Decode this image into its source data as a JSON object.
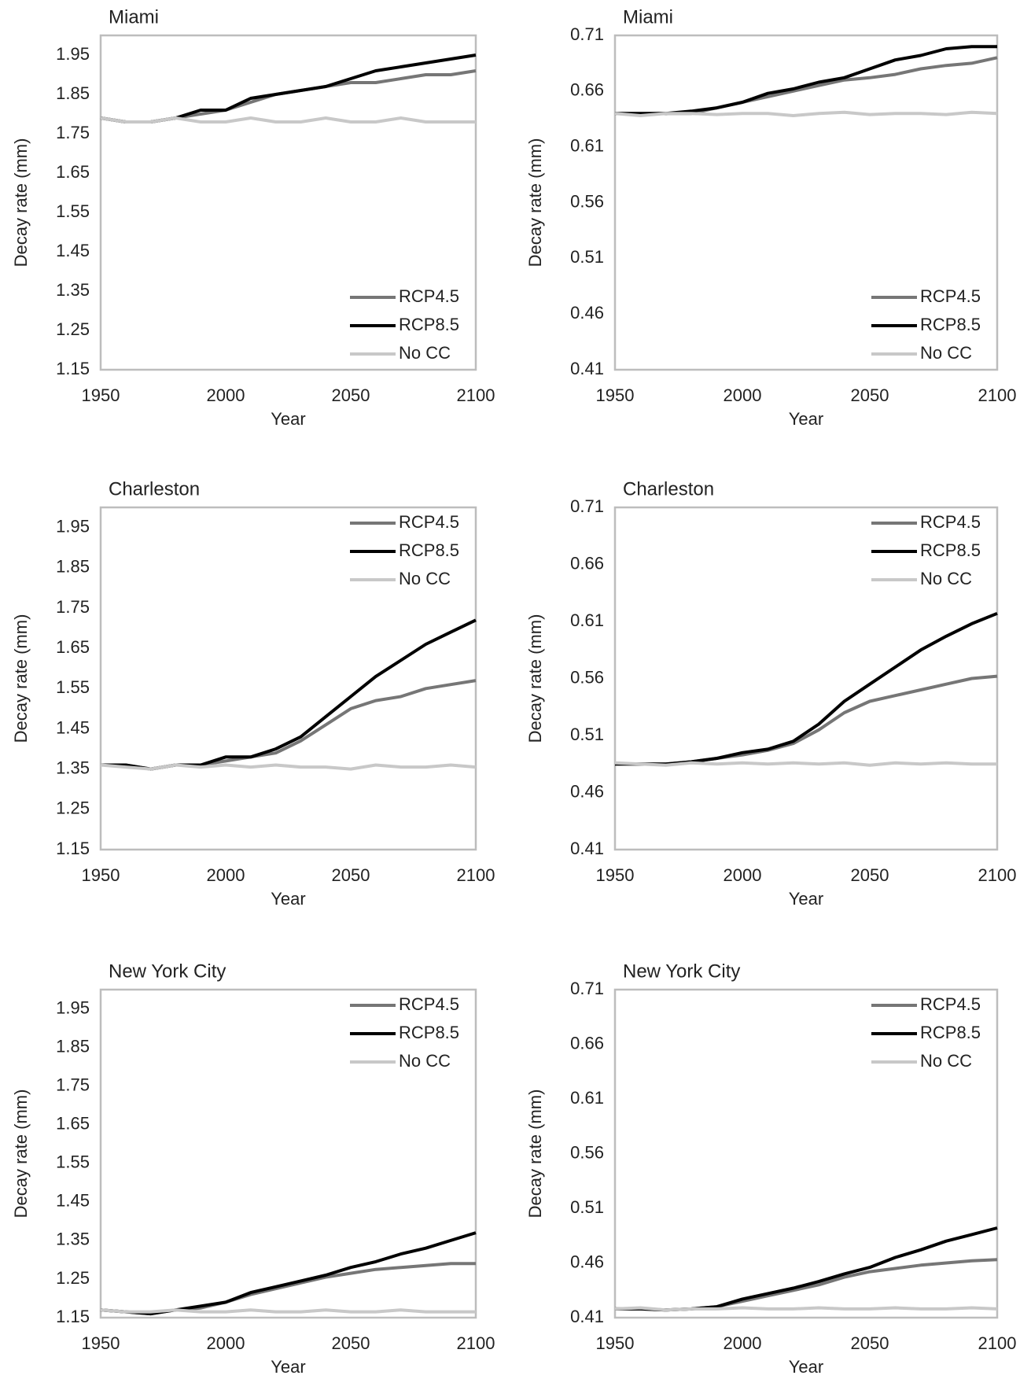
{
  "chart_data": [
    {
      "type": "line",
      "title": "Miami",
      "x_label": "Year",
      "y_label": "Decay rate (mm)",
      "x": [
        1950,
        1960,
        1970,
        1980,
        1990,
        2000,
        2010,
        2020,
        2030,
        2040,
        2050,
        2060,
        2070,
        2080,
        2090,
        2100
      ],
      "xlim": [
        1950,
        2100
      ],
      "xticks": [
        1950,
        2000,
        2050,
        2100
      ],
      "ylim": [
        1.15,
        2.0
      ],
      "yticks": [
        1.15,
        1.25,
        1.35,
        1.45,
        1.55,
        1.65,
        1.75,
        1.85,
        1.95
      ],
      "legend": "lower right",
      "series": [
        {
          "name": "RCP4.5",
          "color": "#767676",
          "values": [
            1.79,
            1.78,
            1.78,
            1.79,
            1.8,
            1.81,
            1.83,
            1.85,
            1.86,
            1.87,
            1.88,
            1.88,
            1.89,
            1.9,
            1.9,
            1.91
          ]
        },
        {
          "name": "RCP8.5",
          "color": "#000000",
          "values": [
            1.79,
            1.78,
            1.78,
            1.79,
            1.81,
            1.81,
            1.84,
            1.85,
            1.86,
            1.87,
            1.89,
            1.91,
            1.92,
            1.93,
            1.94,
            1.95
          ]
        },
        {
          "name": "No CC",
          "color": "#c8c8c8",
          "values": [
            1.79,
            1.78,
            1.78,
            1.79,
            1.78,
            1.78,
            1.79,
            1.78,
            1.78,
            1.79,
            1.78,
            1.78,
            1.79,
            1.78,
            1.78,
            1.78
          ]
        }
      ]
    },
    {
      "type": "line",
      "title": "Miami",
      "x_label": "Year",
      "y_label": "Decay rate (mm)",
      "x": [
        1950,
        1960,
        1970,
        1980,
        1990,
        2000,
        2010,
        2020,
        2030,
        2040,
        2050,
        2060,
        2070,
        2080,
        2090,
        2100
      ],
      "xlim": [
        1950,
        2100
      ],
      "xticks": [
        1950,
        2000,
        2050,
        2100
      ],
      "ylim": [
        0.41,
        0.71
      ],
      "yticks": [
        0.41,
        0.46,
        0.51,
        0.56,
        0.61,
        0.66,
        0.71
      ],
      "legend": "lower right",
      "series": [
        {
          "name": "RCP4.5",
          "color": "#767676",
          "values": [
            0.64,
            0.64,
            0.64,
            0.64,
            0.645,
            0.65,
            0.655,
            0.66,
            0.665,
            0.67,
            0.672,
            0.675,
            0.68,
            0.683,
            0.685,
            0.69
          ]
        },
        {
          "name": "RCP8.5",
          "color": "#000000",
          "values": [
            0.64,
            0.64,
            0.64,
            0.642,
            0.645,
            0.65,
            0.658,
            0.662,
            0.668,
            0.672,
            0.68,
            0.688,
            0.692,
            0.698,
            0.7,
            0.7
          ]
        },
        {
          "name": "No CC",
          "color": "#c8c8c8",
          "values": [
            0.64,
            0.638,
            0.64,
            0.64,
            0.639,
            0.64,
            0.64,
            0.638,
            0.64,
            0.641,
            0.639,
            0.64,
            0.64,
            0.639,
            0.641,
            0.64
          ]
        }
      ]
    },
    {
      "type": "line",
      "title": "Charleston",
      "x_label": "Year",
      "y_label": "Decay rate (mm)",
      "x": [
        1950,
        1960,
        1970,
        1980,
        1990,
        2000,
        2010,
        2020,
        2030,
        2040,
        2050,
        2060,
        2070,
        2080,
        2090,
        2100
      ],
      "xlim": [
        1950,
        2100
      ],
      "xticks": [
        1950,
        2000,
        2050,
        2100
      ],
      "ylim": [
        1.15,
        2.0
      ],
      "yticks": [
        1.15,
        1.25,
        1.35,
        1.45,
        1.55,
        1.65,
        1.75,
        1.85,
        1.95
      ],
      "legend": "upper right",
      "series": [
        {
          "name": "RCP4.5",
          "color": "#767676",
          "values": [
            1.36,
            1.36,
            1.35,
            1.36,
            1.36,
            1.37,
            1.38,
            1.39,
            1.42,
            1.46,
            1.5,
            1.52,
            1.53,
            1.55,
            1.56,
            1.57
          ]
        },
        {
          "name": "RCP8.5",
          "color": "#000000",
          "values": [
            1.36,
            1.36,
            1.35,
            1.36,
            1.36,
            1.38,
            1.38,
            1.4,
            1.43,
            1.48,
            1.53,
            1.58,
            1.62,
            1.66,
            1.69,
            1.72
          ]
        },
        {
          "name": "No CC",
          "color": "#c8c8c8",
          "values": [
            1.36,
            1.355,
            1.35,
            1.36,
            1.355,
            1.36,
            1.355,
            1.36,
            1.355,
            1.355,
            1.35,
            1.36,
            1.355,
            1.355,
            1.36,
            1.355
          ]
        }
      ]
    },
    {
      "type": "line",
      "title": "Charleston",
      "x_label": "Year",
      "y_label": "Decay rate (mm)",
      "x": [
        1950,
        1960,
        1970,
        1980,
        1990,
        2000,
        2010,
        2020,
        2030,
        2040,
        2050,
        2060,
        2070,
        2080,
        2090,
        2100
      ],
      "xlim": [
        1950,
        2100
      ],
      "xticks": [
        1950,
        2000,
        2050,
        2100
      ],
      "ylim": [
        0.41,
        0.71
      ],
      "yticks": [
        0.41,
        0.46,
        0.51,
        0.56,
        0.61,
        0.66,
        0.71
      ],
      "legend": "upper right",
      "series": [
        {
          "name": "RCP4.5",
          "color": "#767676",
          "values": [
            0.485,
            0.485,
            0.485,
            0.487,
            0.49,
            0.493,
            0.497,
            0.503,
            0.515,
            0.53,
            0.54,
            0.545,
            0.55,
            0.555,
            0.56,
            0.562
          ]
        },
        {
          "name": "RCP8.5",
          "color": "#000000",
          "values": [
            0.485,
            0.485,
            0.485,
            0.487,
            0.49,
            0.495,
            0.498,
            0.505,
            0.52,
            0.54,
            0.555,
            0.57,
            0.585,
            0.597,
            0.608,
            0.617
          ]
        },
        {
          "name": "No CC",
          "color": "#c8c8c8",
          "values": [
            0.486,
            0.485,
            0.484,
            0.486,
            0.485,
            0.486,
            0.485,
            0.486,
            0.485,
            0.486,
            0.484,
            0.486,
            0.485,
            0.486,
            0.485,
            0.485
          ]
        }
      ]
    },
    {
      "type": "line",
      "title": "New York City",
      "x_label": "Year",
      "y_label": "Decay rate (mm)",
      "x": [
        1950,
        1960,
        1970,
        1980,
        1990,
        2000,
        2010,
        2020,
        2030,
        2040,
        2050,
        2060,
        2070,
        2080,
        2090,
        2100
      ],
      "xlim": [
        1950,
        2100
      ],
      "xticks": [
        1950,
        2000,
        2050,
        2100
      ],
      "ylim": [
        1.15,
        2.0
      ],
      "yticks": [
        1.15,
        1.25,
        1.35,
        1.45,
        1.55,
        1.65,
        1.75,
        1.85,
        1.95
      ],
      "legend": "upper right",
      "series": [
        {
          "name": "RCP4.5",
          "color": "#767676",
          "values": [
            1.17,
            1.165,
            1.16,
            1.17,
            1.175,
            1.19,
            1.21,
            1.225,
            1.24,
            1.255,
            1.265,
            1.275,
            1.28,
            1.285,
            1.29,
            1.29
          ]
        },
        {
          "name": "RCP8.5",
          "color": "#000000",
          "values": [
            1.17,
            1.165,
            1.16,
            1.17,
            1.18,
            1.19,
            1.215,
            1.23,
            1.245,
            1.26,
            1.28,
            1.295,
            1.315,
            1.33,
            1.35,
            1.37
          ]
        },
        {
          "name": "No CC",
          "color": "#c8c8c8",
          "values": [
            1.17,
            1.165,
            1.165,
            1.17,
            1.165,
            1.165,
            1.17,
            1.165,
            1.165,
            1.17,
            1.165,
            1.165,
            1.17,
            1.165,
            1.165,
            1.165
          ]
        }
      ]
    },
    {
      "type": "line",
      "title": "New York City",
      "x_label": "Year",
      "y_label": "Decay rate (mm)",
      "x": [
        1950,
        1960,
        1970,
        1980,
        1990,
        2000,
        2010,
        2020,
        2030,
        2040,
        2050,
        2060,
        2070,
        2080,
        2090,
        2100
      ],
      "xlim": [
        1950,
        2100
      ],
      "xticks": [
        1950,
        2000,
        2050,
        2100
      ],
      "ylim": [
        0.41,
        0.71
      ],
      "yticks": [
        0.41,
        0.46,
        0.51,
        0.56,
        0.61,
        0.66,
        0.71
      ],
      "legend": "upper right",
      "series": [
        {
          "name": "RCP4.5",
          "color": "#767676",
          "values": [
            0.418,
            0.418,
            0.417,
            0.418,
            0.42,
            0.425,
            0.43,
            0.435,
            0.44,
            0.447,
            0.452,
            0.455,
            0.458,
            0.46,
            0.462,
            0.463
          ]
        },
        {
          "name": "RCP8.5",
          "color": "#000000",
          "values": [
            0.418,
            0.418,
            0.417,
            0.418,
            0.42,
            0.427,
            0.432,
            0.437,
            0.443,
            0.45,
            0.456,
            0.465,
            0.472,
            0.48,
            0.486,
            0.492
          ]
        },
        {
          "name": "No CC",
          "color": "#c8c8c8",
          "values": [
            0.418,
            0.419,
            0.417,
            0.418,
            0.418,
            0.419,
            0.418,
            0.418,
            0.419,
            0.418,
            0.418,
            0.419,
            0.418,
            0.418,
            0.419,
            0.418
          ]
        }
      ]
    }
  ]
}
